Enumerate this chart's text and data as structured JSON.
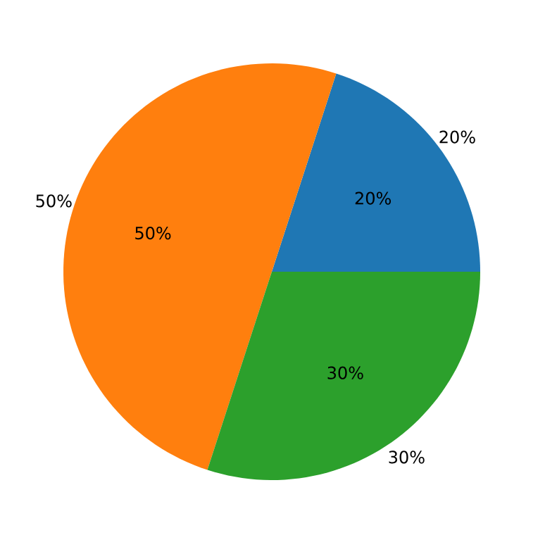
{
  "chart_data": {
    "type": "pie",
    "categories": [
      "20%",
      "50%",
      "30%"
    ],
    "values": [
      20,
      50,
      30
    ],
    "colors": [
      "#1f77b4",
      "#ff7f0e",
      "#2ca02c"
    ],
    "value_labels": [
      "20%",
      "50%",
      "30%"
    ]
  }
}
